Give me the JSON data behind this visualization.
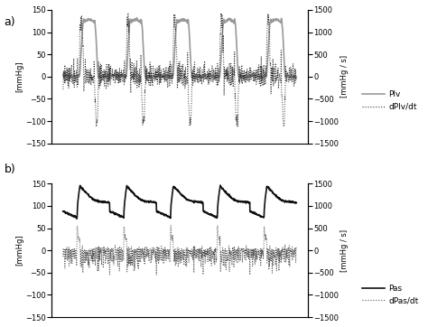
{
  "fig_width": 4.74,
  "fig_height": 3.62,
  "dpi": 100,
  "background_color": "#ffffff",
  "panel_a": {
    "label": "a)",
    "ylabel_left": "[mmHg]",
    "ylabel_right": "[mmHg / s]",
    "ylim_left": [
      -150,
      150
    ],
    "ylim_right": [
      -1500,
      1500
    ],
    "yticks_left": [
      -150,
      -100,
      -50,
      0,
      50,
      100,
      150
    ],
    "yticks_right": [
      -1500,
      -1000,
      -500,
      0,
      500,
      1000,
      1500
    ],
    "plv_color": "#999999",
    "dplv_color": "#333333",
    "plv_lw": 1.2,
    "dplv_lw": 0.7,
    "legend": [
      "Plv",
      "dPlv/dt"
    ]
  },
  "panel_b": {
    "label": "b)",
    "ylabel_left": "[mmHg]",
    "ylabel_right": "[mmHg / s]",
    "ylim_left": [
      -150,
      150
    ],
    "ylim_right": [
      -1500,
      1500
    ],
    "yticks_left": [
      -150,
      -100,
      -50,
      0,
      50,
      100,
      150
    ],
    "yticks_right": [
      -1500,
      -1000,
      -500,
      0,
      500,
      1000,
      1500
    ],
    "pas_color": "#111111",
    "dpas_color": "#555555",
    "pas_lw": 1.2,
    "dpas_lw": 0.7,
    "legend": [
      "Pas",
      "dPas/dt"
    ]
  }
}
